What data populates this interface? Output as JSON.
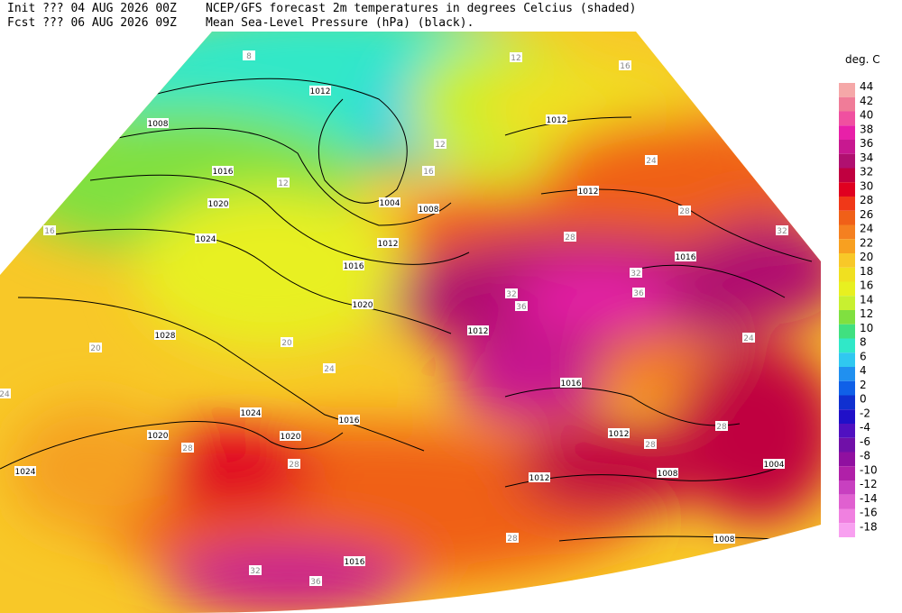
{
  "header": {
    "init": "Init  ??? 04 AUG 2026 00Z",
    "fcst": "Fcst ??? 06 AUG 2026 09Z",
    "title": "NCEP/GFS forecast 2m temperatures in degrees Celcius (shaded)",
    "subtitle": "Mean Sea-Level Pressure (hPa) (black)."
  },
  "legend": {
    "title": "deg. C",
    "entries": [
      {
        "label": "44",
        "color": "#f5a8a8"
      },
      {
        "label": "42",
        "color": "#f07c98"
      },
      {
        "label": "40",
        "color": "#f050a0"
      },
      {
        "label": "38",
        "color": "#e820a8"
      },
      {
        "label": "36",
        "color": "#c81890"
      },
      {
        "label": "34",
        "color": "#b01070"
      },
      {
        "label": "32",
        "color": "#c00040"
      },
      {
        "label": "30",
        "color": "#e00020"
      },
      {
        "label": "28",
        "color": "#f03818"
      },
      {
        "label": "26",
        "color": "#f06018"
      },
      {
        "label": "24",
        "color": "#f58020"
      },
      {
        "label": "22",
        "color": "#f8a020"
      },
      {
        "label": "20",
        "color": "#f8c828"
      },
      {
        "label": "18",
        "color": "#f0e020"
      },
      {
        "label": "16",
        "color": "#e8f020"
      },
      {
        "label": "14",
        "color": "#c8f030"
      },
      {
        "label": "12",
        "color": "#80e040"
      },
      {
        "label": "10",
        "color": "#40e080"
      },
      {
        "label": "8",
        "color": "#30e8c8"
      },
      {
        "label": "6",
        "color": "#30c8f0"
      },
      {
        "label": "4",
        "color": "#2090f0"
      },
      {
        "label": "2",
        "color": "#1060e8"
      },
      {
        "label": "0",
        "color": "#1030d0"
      },
      {
        "label": "-2",
        "color": "#2010c8"
      },
      {
        "label": "-4",
        "color": "#5010c0"
      },
      {
        "label": "-6",
        "color": "#7010a8"
      },
      {
        "label": "-8",
        "color": "#9010a0"
      },
      {
        "label": "-10",
        "color": "#b020a8"
      },
      {
        "label": "-12",
        "color": "#c840c0"
      },
      {
        "label": "-14",
        "color": "#e060d0"
      },
      {
        "label": "-16",
        "color": "#f080e0"
      },
      {
        "label": "-18",
        "color": "#f8a0f0"
      }
    ]
  },
  "map": {
    "isobar_labels": [
      "1012",
      "1008",
      "1016",
      "1020",
      "1024",
      "1028",
      "1024",
      "1020",
      "1024",
      "1020",
      "1016",
      "1020",
      "1016",
      "1012",
      "1008",
      "1004",
      "1012",
      "1012",
      "1016",
      "1016",
      "1012",
      "1012",
      "1008",
      "1008",
      "1004",
      "1016",
      "1012"
    ],
    "temperature_labels": [
      "8",
      "12",
      "16",
      "16",
      "20",
      "24",
      "28",
      "28",
      "32",
      "36",
      "32",
      "36",
      "36",
      "32",
      "28",
      "24",
      "28",
      "32",
      "24",
      "28",
      "28",
      "28",
      "20",
      "24",
      "12",
      "16",
      "12"
    ]
  }
}
